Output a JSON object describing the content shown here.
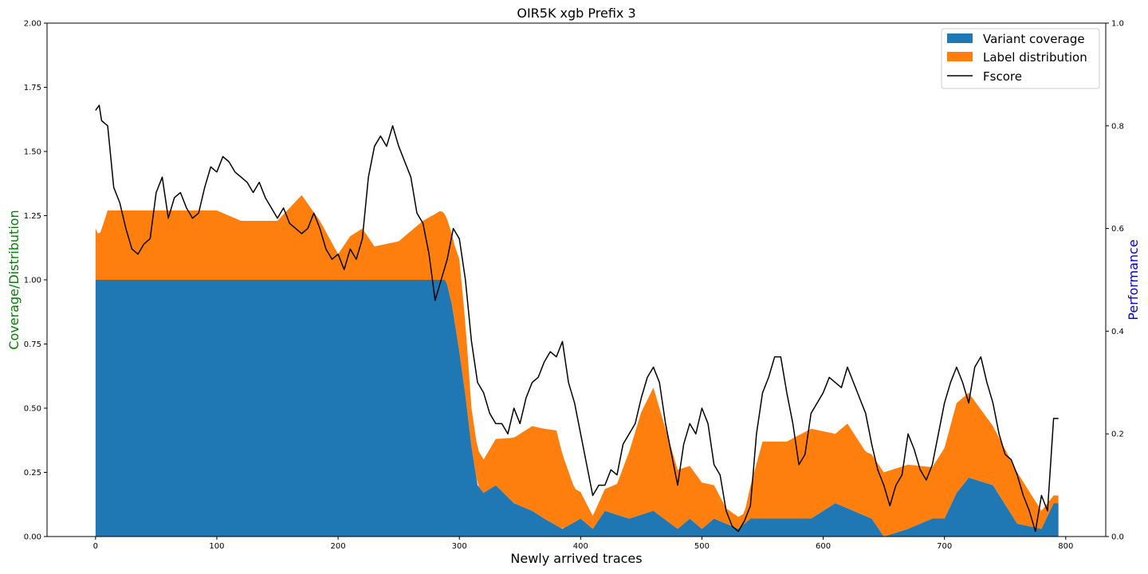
{
  "chart_data": {
    "type": "area",
    "title": "OIR5K xgb Prefix 3",
    "xlabel": "Newly arrived traces",
    "ylabel_left": "Coverage/Distribution",
    "ylabel_right": "Performance",
    "ylabel_left_color": "#008000",
    "ylabel_right_color": "#0000cc",
    "xlim": [
      -40,
      833
    ],
    "ylim_left": [
      0,
      2.0
    ],
    "ylim_right": [
      0,
      1.0
    ],
    "x_ticks": [
      "0",
      "100",
      "200",
      "300",
      "400",
      "500",
      "600",
      "700",
      "800"
    ],
    "y_left_ticks": [
      "0.00",
      "0.25",
      "0.50",
      "0.75",
      "1.00",
      "1.25",
      "1.50",
      "1.75",
      "2.00"
    ],
    "y_right_ticks": [
      "0.0",
      "0.2",
      "0.4",
      "0.6",
      "0.8",
      "1.0"
    ],
    "legend_position": "top-right",
    "series": [
      {
        "name": "Variant coverage",
        "kind": "stacked-area",
        "axis": "left",
        "color": "#1f77b4",
        "x": [
          0,
          289,
          294,
          300,
          305,
          310,
          315,
          320,
          330,
          345,
          360,
          370,
          385,
          400,
          410,
          420,
          440,
          460,
          480,
          490,
          500,
          510,
          530,
          540,
          560,
          590,
          610,
          640,
          650,
          670,
          690,
          700,
          710,
          720,
          740,
          760,
          780,
          790,
          794
        ],
        "values": [
          1.0,
          1.0,
          0.9,
          0.72,
          0.55,
          0.35,
          0.2,
          0.17,
          0.2,
          0.13,
          0.1,
          0.07,
          0.03,
          0.07,
          0.03,
          0.1,
          0.07,
          0.1,
          0.03,
          0.07,
          0.03,
          0.07,
          0.03,
          0.07,
          0.07,
          0.07,
          0.13,
          0.07,
          0.0,
          0.03,
          0.07,
          0.07,
          0.17,
          0.23,
          0.2,
          0.05,
          0.03,
          0.13,
          0.13
        ]
      },
      {
        "name": "Label distribution",
        "kind": "stacked-area",
        "axis": "left",
        "color": "#ff7f0e",
        "x": [
          0,
          3,
          10,
          30,
          50,
          70,
          100,
          120,
          150,
          170,
          185,
          200,
          210,
          220,
          230,
          250,
          270,
          285,
          289,
          295,
          300,
          305,
          310,
          320,
          340,
          360,
          380,
          395,
          410,
          430,
          450,
          460,
          480,
          500,
          510,
          520,
          535,
          550,
          570,
          590,
          610,
          620,
          635,
          650,
          670,
          690,
          710,
          720,
          740,
          760,
          780,
          790,
          794
        ],
        "values": [
          0.2,
          0.17,
          0.27,
          0.27,
          0.27,
          0.27,
          0.27,
          0.23,
          0.23,
          0.33,
          0.23,
          0.1,
          0.17,
          0.2,
          0.13,
          0.15,
          0.23,
          0.27,
          0.25,
          0.28,
          0.36,
          0.28,
          0.15,
          0.13,
          0.23,
          0.33,
          0.37,
          0.13,
          0.05,
          0.12,
          0.4,
          0.48,
          0.23,
          0.18,
          0.13,
          0.06,
          0.04,
          0.3,
          0.3,
          0.35,
          0.27,
          0.33,
          0.25,
          0.25,
          0.25,
          0.2,
          0.35,
          0.33,
          0.23,
          0.2,
          0.07,
          0.03,
          0.03
        ]
      },
      {
        "name": "Fscore",
        "kind": "line",
        "axis": "right",
        "color": "#000000",
        "x": [
          0,
          3,
          5,
          10,
          15,
          20,
          25,
          30,
          35,
          40,
          45,
          50,
          55,
          60,
          65,
          70,
          75,
          80,
          85,
          90,
          95,
          100,
          105,
          110,
          115,
          120,
          125,
          130,
          135,
          140,
          145,
          150,
          155,
          160,
          165,
          170,
          175,
          180,
          185,
          190,
          195,
          200,
          205,
          210,
          215,
          220,
          225,
          230,
          235,
          240,
          245,
          250,
          255,
          260,
          265,
          270,
          275,
          280,
          285,
          290,
          295,
          300,
          305,
          310,
          315,
          320,
          325,
          330,
          335,
          340,
          345,
          350,
          355,
          360,
          365,
          370,
          375,
          380,
          385,
          390,
          395,
          400,
          405,
          410,
          415,
          420,
          425,
          430,
          435,
          440,
          445,
          450,
          455,
          460,
          465,
          470,
          475,
          480,
          485,
          490,
          495,
          500,
          505,
          510,
          515,
          520,
          525,
          530,
          535,
          540,
          545,
          550,
          555,
          560,
          565,
          570,
          575,
          580,
          585,
          590,
          595,
          600,
          605,
          610,
          615,
          620,
          625,
          630,
          635,
          640,
          645,
          650,
          655,
          660,
          665,
          670,
          675,
          680,
          685,
          690,
          695,
          700,
          705,
          710,
          715,
          720,
          725,
          730,
          735,
          740,
          745,
          750,
          755,
          760,
          765,
          770,
          775,
          780,
          785,
          790,
          794
        ],
        "values": [
          0.83,
          0.84,
          0.81,
          0.8,
          0.68,
          0.65,
          0.6,
          0.56,
          0.55,
          0.57,
          0.58,
          0.67,
          0.7,
          0.62,
          0.66,
          0.67,
          0.64,
          0.62,
          0.63,
          0.68,
          0.72,
          0.71,
          0.74,
          0.73,
          0.71,
          0.7,
          0.69,
          0.67,
          0.69,
          0.66,
          0.64,
          0.62,
          0.64,
          0.61,
          0.6,
          0.59,
          0.6,
          0.63,
          0.6,
          0.56,
          0.54,
          0.55,
          0.52,
          0.56,
          0.54,
          0.58,
          0.7,
          0.76,
          0.78,
          0.76,
          0.8,
          0.76,
          0.73,
          0.7,
          0.63,
          0.61,
          0.55,
          0.46,
          0.5,
          0.54,
          0.6,
          0.58,
          0.5,
          0.38,
          0.3,
          0.28,
          0.24,
          0.22,
          0.22,
          0.2,
          0.25,
          0.22,
          0.27,
          0.3,
          0.31,
          0.34,
          0.36,
          0.35,
          0.38,
          0.3,
          0.26,
          0.2,
          0.14,
          0.08,
          0.1,
          0.1,
          0.13,
          0.12,
          0.18,
          0.2,
          0.22,
          0.27,
          0.31,
          0.33,
          0.3,
          0.22,
          0.16,
          0.1,
          0.18,
          0.22,
          0.2,
          0.25,
          0.22,
          0.14,
          0.12,
          0.05,
          0.02,
          0.01,
          0.03,
          0.06,
          0.2,
          0.28,
          0.31,
          0.35,
          0.35,
          0.28,
          0.22,
          0.14,
          0.16,
          0.24,
          0.26,
          0.28,
          0.31,
          0.3,
          0.29,
          0.33,
          0.3,
          0.27,
          0.24,
          0.18,
          0.13,
          0.1,
          0.06,
          0.1,
          0.12,
          0.2,
          0.17,
          0.13,
          0.11,
          0.14,
          0.2,
          0.26,
          0.3,
          0.33,
          0.3,
          0.26,
          0.33,
          0.35,
          0.3,
          0.26,
          0.2,
          0.16,
          0.15,
          0.12,
          0.08,
          0.05,
          0.01,
          0.08,
          0.05,
          0.23,
          0.23
        ]
      }
    ]
  }
}
